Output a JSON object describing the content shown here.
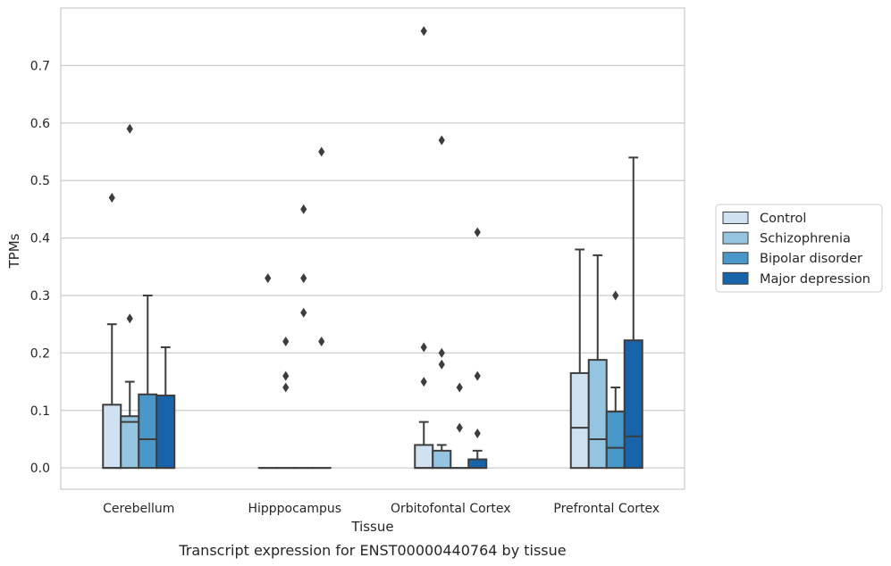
{
  "caption": "Transcript expression for ENST00000440764 by tissue",
  "chart_data": {
    "type": "box",
    "xlabel": "Tissue",
    "ylabel": "TPMs",
    "ylim": [
      -0.037,
      0.8
    ],
    "yticks": [
      "0.0",
      "0.1",
      "0.2",
      "0.3",
      "0.4",
      "0.5",
      "0.6",
      "0.7"
    ],
    "grid": true,
    "legend_position": "right",
    "categories": [
      "Cerebellum",
      "Hipppocampus",
      "Orbitofontal Cortex",
      "Prefrontal Cortex"
    ],
    "series": [
      {
        "name": "Control",
        "color": "#d0e1f2",
        "boxes": [
          {
            "q1": 0.0,
            "median": 0.0,
            "q3": 0.11,
            "whisker_low": 0.0,
            "whisker_high": 0.25,
            "outliers": [
              0.47
            ]
          },
          {
            "q1": 0.0,
            "median": 0.0,
            "q3": 0.0,
            "whisker_low": 0.0,
            "whisker_high": 0.0,
            "outliers": [
              0.33
            ]
          },
          {
            "q1": 0.0,
            "median": 0.0,
            "q3": 0.04,
            "whisker_low": 0.0,
            "whisker_high": 0.08,
            "outliers": [
              0.76,
              0.21,
              0.15
            ]
          },
          {
            "q1": 0.0,
            "median": 0.07,
            "q3": 0.165,
            "whisker_low": 0.0,
            "whisker_high": 0.38,
            "outliers": []
          }
        ]
      },
      {
        "name": "Schizophrenia",
        "color": "#94c4df",
        "boxes": [
          {
            "q1": 0.0,
            "median": 0.08,
            "q3": 0.09,
            "whisker_low": 0.0,
            "whisker_high": 0.15,
            "outliers": [
              0.59,
              0.26
            ]
          },
          {
            "q1": 0.0,
            "median": 0.0,
            "q3": 0.0,
            "whisker_low": 0.0,
            "whisker_high": 0.0,
            "outliers": [
              0.22,
              0.16,
              0.14
            ]
          },
          {
            "q1": 0.0,
            "median": 0.0,
            "q3": 0.03,
            "whisker_low": 0.0,
            "whisker_high": 0.04,
            "outliers": [
              0.57,
              0.2,
              0.18
            ]
          },
          {
            "q1": 0.0,
            "median": 0.05,
            "q3": 0.188,
            "whisker_low": 0.0,
            "whisker_high": 0.37,
            "outliers": []
          }
        ]
      },
      {
        "name": "Bipolar disorder",
        "color": "#4a98c9",
        "boxes": [
          {
            "q1": 0.0,
            "median": 0.05,
            "q3": 0.128,
            "whisker_low": 0.0,
            "whisker_high": 0.3,
            "outliers": []
          },
          {
            "q1": 0.0,
            "median": 0.0,
            "q3": 0.0,
            "whisker_low": 0.0,
            "whisker_high": 0.0,
            "outliers": [
              0.45,
              0.33,
              0.27
            ]
          },
          {
            "q1": 0.0,
            "median": 0.0,
            "q3": 0.0,
            "whisker_low": 0.0,
            "whisker_high": 0.0,
            "outliers": [
              0.14,
              0.07
            ]
          },
          {
            "q1": 0.0,
            "median": 0.035,
            "q3": 0.098,
            "whisker_low": 0.0,
            "whisker_high": 0.14,
            "outliers": [
              0.3
            ]
          }
        ]
      },
      {
        "name": "Major depression",
        "color": "#1764ab",
        "boxes": [
          {
            "q1": 0.0,
            "median": 0.0,
            "q3": 0.126,
            "whisker_low": 0.0,
            "whisker_high": 0.21,
            "outliers": []
          },
          {
            "q1": 0.0,
            "median": 0.0,
            "q3": 0.0,
            "whisker_low": 0.0,
            "whisker_high": 0.0,
            "outliers": [
              0.55,
              0.22
            ]
          },
          {
            "q1": 0.0,
            "median": 0.0,
            "q3": 0.015,
            "whisker_low": 0.0,
            "whisker_high": 0.03,
            "outliers": [
              0.41,
              0.16,
              0.06
            ]
          },
          {
            "q1": 0.0,
            "median": 0.055,
            "q3": 0.222,
            "whisker_low": 0.0,
            "whisker_high": 0.54,
            "outliers": []
          }
        ]
      }
    ]
  }
}
